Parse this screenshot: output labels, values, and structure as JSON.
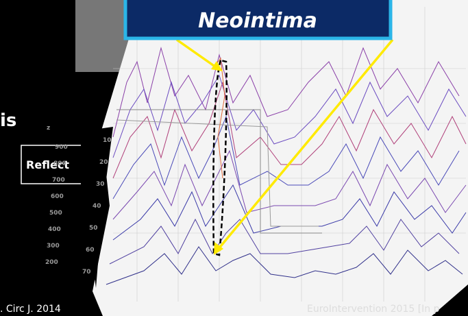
{
  "header": {
    "title": "Neointima"
  },
  "left_text": "is",
  "button": "Reflect",
  "z_axis": {
    "label": "z",
    "ticks": [
      900,
      800,
      700,
      600,
      500,
      400,
      300,
      200
    ]
  },
  "y_axis": {
    "ticks": [
      10,
      20,
      30,
      40,
      50,
      60,
      70
    ]
  },
  "citations": [
    ". Circ J. 2014",
    "EuroIntervention 2015 [In p"
  ]
}
